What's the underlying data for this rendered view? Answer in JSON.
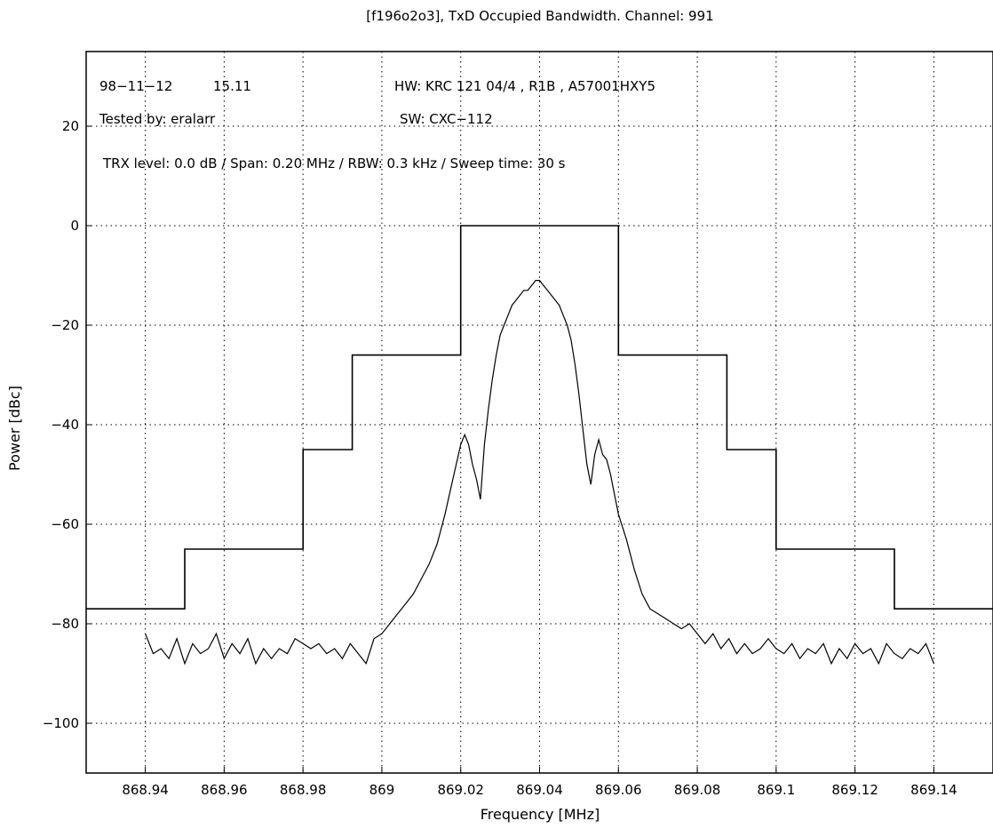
{
  "chart_data": {
    "type": "line",
    "title": "[f196o2o3], TxD Occupied Bandwidth. Channel: 991",
    "xlabel": "Frequency [MHz]",
    "ylabel": "Power [dBc]",
    "xlim": [
      868.925,
      869.155
    ],
    "ylim": [
      -110,
      35
    ],
    "grid": true,
    "x_ticks": [
      868.94,
      868.96,
      868.98,
      869.0,
      869.02,
      869.04,
      869.06,
      869.08,
      869.1,
      869.12,
      869.14
    ],
    "x_tick_labels": [
      "868.94",
      "868.96",
      "868.98",
      "869",
      "869.02",
      "869.04",
      "869.06",
      "869.08",
      "869.1",
      "869.12",
      "869.14"
    ],
    "y_ticks": [
      -100,
      -80,
      -60,
      -40,
      -20,
      0,
      20
    ],
    "y_tick_labels": [
      "−100",
      "−80",
      "−60",
      "−40",
      "−20",
      "0",
      "20"
    ],
    "annotations": {
      "date": "98−11−12",
      "time": "15.11",
      "tested_by": "Tested by: eralarr",
      "hw": "HW: KRC 121 04/4 , R1B , A57001HXY5",
      "sw": "SW: CXC−112",
      "settings": "TRX level: 0.0 dB / Span: 0.20 MHz / RBW: 0.3 kHz / Sweep time: 30 s"
    },
    "series": [
      {
        "role": "mask",
        "color": "#000000",
        "x": [
          868.925,
          868.95,
          868.95,
          868.965,
          868.965,
          868.98,
          868.98,
          868.9925,
          868.9925,
          869.0,
          869.0,
          869.02,
          869.02,
          869.06,
          869.06,
          869.08,
          869.08,
          869.0875,
          869.0875,
          869.1,
          869.1,
          869.115,
          869.115,
          869.13,
          869.13,
          869.155
        ],
        "y": [
          -77,
          -77,
          -65,
          -65,
          -65,
          -65,
          -45,
          -45,
          -26,
          -26,
          -26,
          -26,
          0,
          0,
          -26,
          -26,
          -26,
          -26,
          -45,
          -45,
          -65,
          -65,
          -65,
          -65,
          -77,
          -77
        ]
      },
      {
        "role": "measured",
        "color": "#000000",
        "x": [
          868.94,
          868.942,
          868.944,
          868.946,
          868.948,
          868.95,
          868.952,
          868.954,
          868.956,
          868.958,
          868.96,
          868.962,
          868.964,
          868.966,
          868.968,
          868.97,
          868.972,
          868.974,
          868.976,
          868.978,
          868.98,
          868.982,
          868.984,
          868.986,
          868.988,
          868.99,
          868.992,
          868.994,
          868.996,
          868.998,
          869.0,
          869.002,
          869.004,
          869.006,
          869.008,
          869.01,
          869.012,
          869.014,
          869.016,
          869.018,
          869.02,
          869.021,
          869.022,
          869.023,
          869.024,
          869.025,
          869.026,
          869.027,
          869.028,
          869.029,
          869.03,
          869.031,
          869.032,
          869.033,
          869.034,
          869.035,
          869.036,
          869.037,
          869.038,
          869.039,
          869.04,
          869.041,
          869.042,
          869.043,
          869.044,
          869.045,
          869.046,
          869.047,
          869.048,
          869.049,
          869.05,
          869.051,
          869.052,
          869.053,
          869.054,
          869.055,
          869.056,
          869.057,
          869.058,
          869.059,
          869.06,
          869.062,
          869.064,
          869.066,
          869.068,
          869.07,
          869.072,
          869.074,
          869.076,
          869.078,
          869.08,
          869.082,
          869.084,
          869.086,
          869.088,
          869.09,
          869.092,
          869.094,
          869.096,
          869.098,
          869.1,
          869.102,
          869.104,
          869.106,
          869.108,
          869.11,
          869.112,
          869.114,
          869.116,
          869.118,
          869.12,
          869.122,
          869.124,
          869.126,
          869.128,
          869.13,
          869.132,
          869.134,
          869.136,
          869.138,
          869.14
        ],
        "y": [
          -82,
          -86,
          -85,
          -87,
          -83,
          -88,
          -84,
          -86,
          -85,
          -82,
          -87,
          -84,
          -86,
          -83,
          -88,
          -85,
          -87,
          -85,
          -86,
          -83,
          -84,
          -85,
          -84,
          -86,
          -85,
          -87,
          -84,
          -86,
          -88,
          -83,
          -82,
          -80,
          -78,
          -76,
          -74,
          -71,
          -68,
          -64,
          -58,
          -51,
          -44,
          -42,
          -44,
          -48,
          -51,
          -55,
          -44,
          -37,
          -31,
          -26,
          -22,
          -20,
          -18,
          -16,
          -15,
          -14,
          -13,
          -13,
          -12,
          -11,
          -11,
          -12,
          -13,
          -14,
          -15,
          -16,
          -18,
          -20,
          -23,
          -28,
          -34,
          -41,
          -48,
          -52,
          -46,
          -43,
          -46,
          -47,
          -50,
          -54,
          -58,
          -63,
          -69,
          -74,
          -77,
          -78,
          -79,
          -80,
          -81,
          -80,
          -82,
          -84,
          -82,
          -85,
          -83,
          -86,
          -84,
          -86,
          -85,
          -83,
          -85,
          -86,
          -84,
          -87,
          -85,
          -86,
          -84,
          -88,
          -85,
          -87,
          -84,
          -86,
          -85,
          -88,
          -84,
          -86,
          -87,
          -85,
          -86,
          -84,
          -88
        ]
      }
    ]
  }
}
